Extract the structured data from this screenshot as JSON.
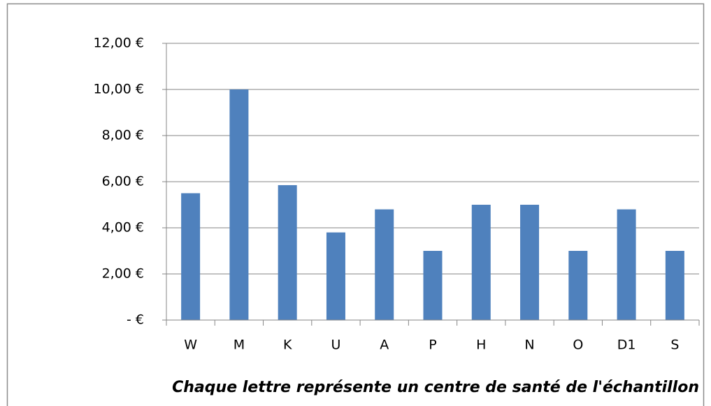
{
  "chart_data": {
    "type": "bar",
    "x_label": "Chaque lettre représente un centre de santé de l'échantillon",
    "categories": [
      "W",
      "M",
      "K",
      "U",
      "A",
      "P",
      "H",
      "N",
      "O",
      "D1",
      "S"
    ],
    "values": [
      5.5,
      10,
      5.85,
      3.8,
      4.8,
      3,
      5,
      5,
      3,
      4.8,
      3
    ],
    "color": "#4f81bd",
    "ylim": [
      0,
      12
    ],
    "yticks": [
      {
        "value": 0,
        "label": "-   €"
      },
      {
        "value": 2,
        "label": "2,00 €"
      },
      {
        "value": 4,
        "label": "4,00 €"
      },
      {
        "value": 6,
        "label": "6,00 €"
      },
      {
        "value": 8,
        "label": "8,00 €"
      },
      {
        "value": 10,
        "label": "10,00 €"
      },
      {
        "value": 12,
        "label": "12,00 €"
      }
    ],
    "grid": true
  }
}
